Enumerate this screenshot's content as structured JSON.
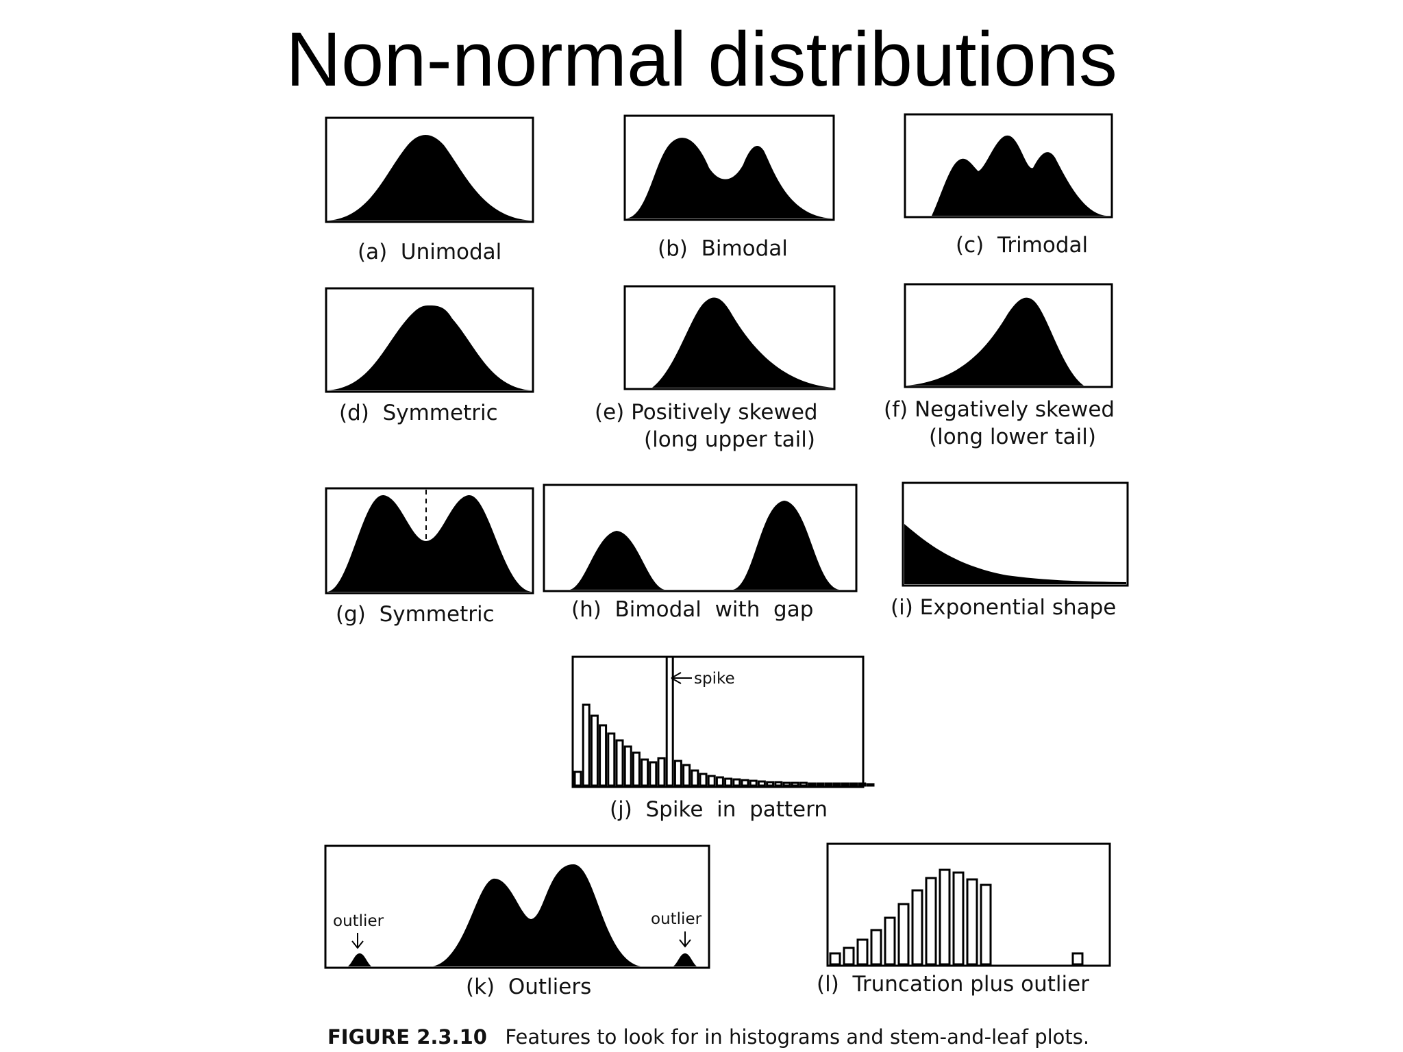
{
  "slide": {
    "title": "Non-normal distributions"
  },
  "figure": {
    "number": "FIGURE 2.3.10",
    "caption": "Features to look for in histograms and stem-and-leaf plots."
  },
  "panels": {
    "a": {
      "caption": "(a)  Unimodal"
    },
    "b": {
      "caption": "(b)  Bimodal"
    },
    "c": {
      "caption": "(c)  Trimodal"
    },
    "d": {
      "caption": "(d)  Symmetric"
    },
    "e": {
      "caption_line1": "(e) Positively skewed",
      "caption_line2": "(long upper tail)"
    },
    "f": {
      "caption_line1": "(f) Negatively skewed",
      "caption_line2": "(long lower tail)"
    },
    "g": {
      "caption": "(g)  Symmetric"
    },
    "h": {
      "caption": "(h)  Bimodal  with  gap"
    },
    "i": {
      "caption": "(i) Exponential shape"
    },
    "j": {
      "caption": "(j)  Spike  in  pattern",
      "annotation": "spike"
    },
    "k": {
      "caption": "(k)  Outliers",
      "annotation_left": "outlier",
      "annotation_right": "outlier"
    },
    "l": {
      "caption": "(l)  Truncation plus outlier"
    }
  }
}
